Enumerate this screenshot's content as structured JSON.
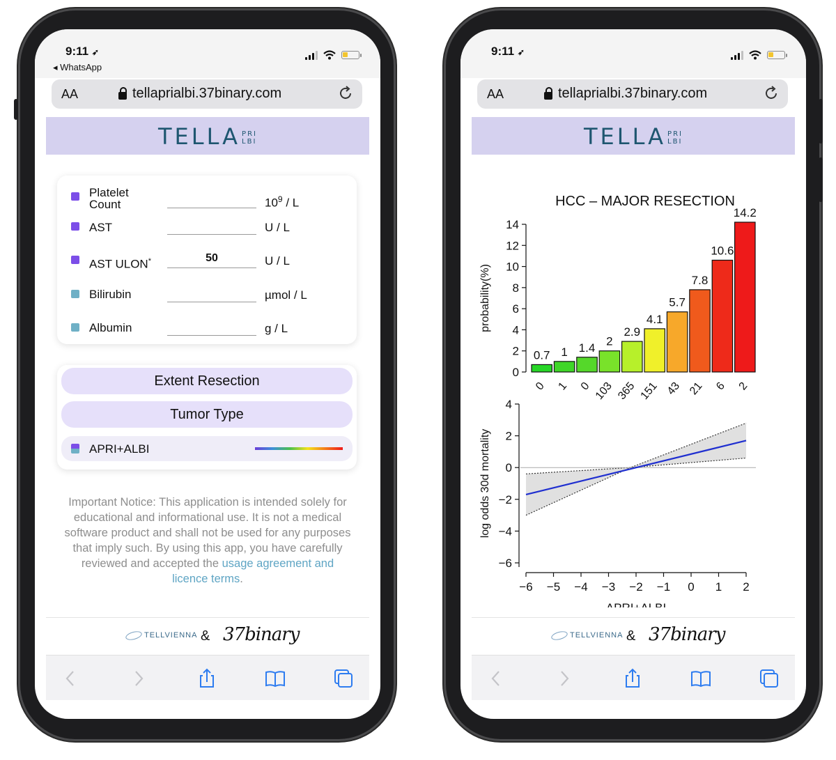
{
  "status": {
    "time": "9:11",
    "back_app": "◂ WhatsApp"
  },
  "browser": {
    "aa": "AA",
    "url": "tellaprialbi.37binary.com"
  },
  "logo": {
    "main": "TELLA",
    "stack_top": "PRI",
    "stack_bottom": "LBI"
  },
  "form": {
    "fields": [
      {
        "label_line1": "Platelet",
        "label_line2": "Count",
        "value": "",
        "unit": "10",
        "unit_sup": "9",
        "unit_rest": " / L",
        "color": "#7c4ee8"
      },
      {
        "label": "AST",
        "value": "",
        "unit": "U / L",
        "color": "#7c4ee8"
      },
      {
        "label": "AST ULON",
        "label_sup": "*",
        "value": "50",
        "unit": "U / L",
        "color": "#7c4ee8"
      },
      {
        "label": "Bilirubin",
        "value": "",
        "unit": "µmol / L",
        "color": "#6fb0c6"
      },
      {
        "label": "Albumin",
        "value": "",
        "unit": "g / L",
        "color": "#6fb0c6"
      }
    ]
  },
  "options": {
    "extent": "Extent Resection",
    "tumor": "Tumor Type",
    "model": "APRI+ALBI"
  },
  "notice": {
    "text": "Important Notice: This application is intended solely for educational and informational use. It is not a medical software product and shall not be used for any purposes that imply such. By using this app, you have carefully reviewed and accepted the ",
    "link": "usage agreement and licence terms",
    "end": "."
  },
  "footer": {
    "tellvienna": "TELLVIENNA",
    "amp": "&",
    "binary": "37binary"
  },
  "chart_data": [
    {
      "type": "bar",
      "title": "HCC – MAJOR RESECTION",
      "ylabel": "probability(%)",
      "ylim": [
        0,
        14
      ],
      "yticks": [
        0,
        2,
        4,
        6,
        8,
        10,
        12,
        14
      ],
      "values": [
        0.7,
        1,
        1.4,
        2,
        2.9,
        4.1,
        5.7,
        7.8,
        10.6,
        14.2
      ],
      "value_labels": [
        "0.7",
        "1",
        "1.4",
        "2",
        "2.9",
        "4.1",
        "5.7",
        "7.8",
        "10.6",
        "14.2"
      ],
      "categories": [
        "0",
        "1",
        "0",
        "103",
        "365",
        "151",
        "43",
        "21",
        "6",
        "2"
      ],
      "colors": [
        "#27d627",
        "#3fd628",
        "#55d82a",
        "#79e22a",
        "#b7f02a",
        "#f0f02a",
        "#f7a82a",
        "#f05a1c",
        "#ee2a1a",
        "#ee1a1a"
      ]
    },
    {
      "type": "line",
      "xlabel": "APRI+ALBI",
      "ylabel": "log odds 30d mortality",
      "xlim": [
        -6,
        2
      ],
      "ylim": [
        -6,
        4
      ],
      "xticks": [
        "−6",
        "−5",
        "−4",
        "−3",
        "−2",
        "−1",
        "0",
        "1",
        "2"
      ],
      "yticks": [
        "4",
        "2",
        "0",
        "−2",
        "−4",
        "−6"
      ],
      "series": [
        {
          "values_x": [
            -6,
            2
          ],
          "values_y": [
            -1.7,
            1.7
          ],
          "color": "#1f2fd0"
        }
      ],
      "band_upper": {
        "x": [
          -6,
          -2.2,
          2
        ],
        "y": [
          -0.4,
          0,
          2.8
        ]
      },
      "band_lower": {
        "x": [
          -6,
          -2.2,
          2
        ],
        "y": [
          -3.0,
          0,
          0.6
        ]
      }
    }
  ]
}
